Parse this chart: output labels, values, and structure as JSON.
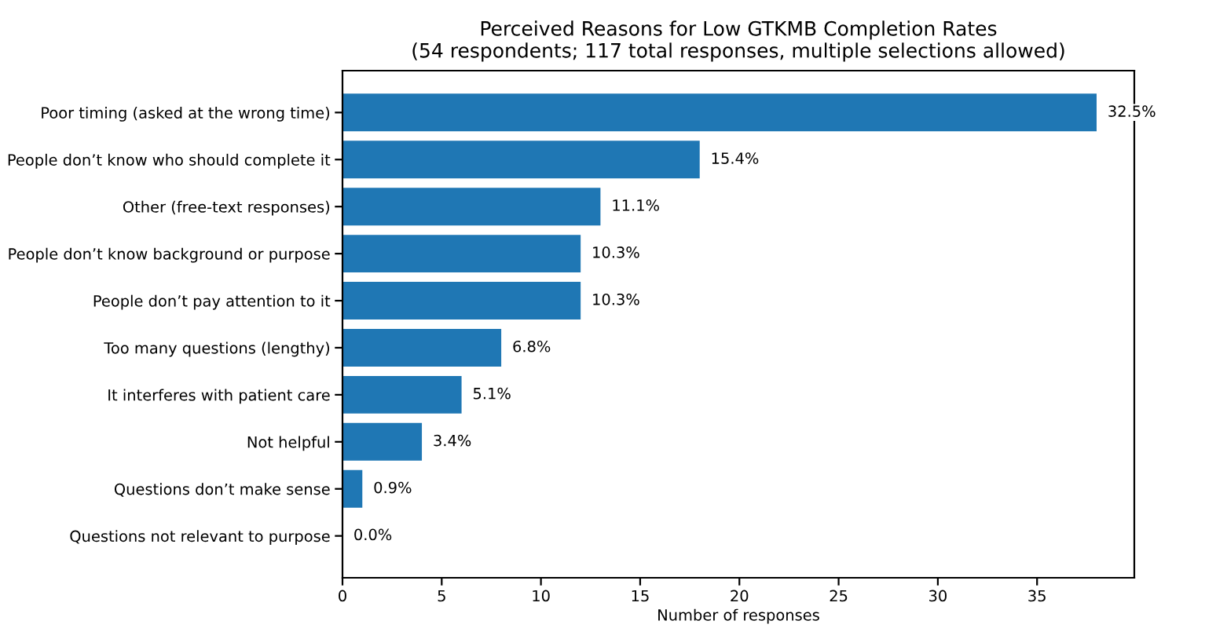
{
  "chart_data": {
    "type": "bar",
    "orientation": "horizontal",
    "title": "Perceived Reasons for Low GTKMB Completion Rates\n(54 respondents; 117 total responses, multiple selections allowed)",
    "xlabel": "Number of responses",
    "categories": [
      "Poor timing (asked at the wrong time)",
      "People don’t know who should complete it",
      "Other (free-text responses)",
      "People don’t know background or purpose",
      "People don’t pay attention to it",
      "Too many questions (lengthy)",
      "It interferes with patient care",
      "Not helpful",
      "Questions don’t make sense",
      "Questions not relevant to purpose"
    ],
    "values": [
      38,
      18,
      13,
      12,
      12,
      8,
      6,
      4,
      1,
      0
    ],
    "annotations": [
      {
        "text": "32.5%",
        "x": 38,
        "y": "Poor timing (asked at the wrong time)"
      },
      {
        "text": "15.4%",
        "x": 18,
        "y": "People don’t know who should complete it"
      },
      {
        "text": "11.1%",
        "x": 13,
        "y": "Other (free-text responses)"
      },
      {
        "text": "10.3%",
        "x": 12,
        "y": "People don’t know background or purpose"
      },
      {
        "text": "10.3%",
        "x": 12,
        "y": "People don’t pay attention to it"
      },
      {
        "text": "6.8%",
        "x": 8,
        "y": "Too many questions (lengthy)"
      },
      {
        "text": "5.1%",
        "x": 6,
        "y": "It interferes with patient care"
      },
      {
        "text": "3.4%",
        "x": 4,
        "y": "Not helpful"
      },
      {
        "text": "0.9%",
        "x": 1,
        "y": "Questions don’t make sense"
      },
      {
        "text": "0.0%",
        "x": 0,
        "y": "Questions not relevant to purpose"
      }
    ],
    "color": "#1f77b4",
    "xlim": [
      0,
      39.9
    ],
    "xticks": [
      0,
      5,
      10,
      15,
      20,
      25,
      30,
      35
    ],
    "grid": false,
    "legend": false
  }
}
